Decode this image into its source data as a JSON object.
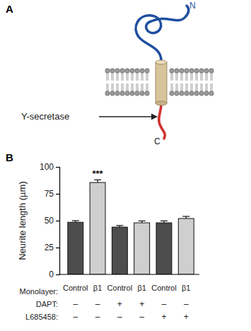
{
  "diagram": {
    "label": "A",
    "n_terminus": "N",
    "c_terminus": "C",
    "arrow_label": "Y-secretase"
  },
  "chart_data": {
    "type": "bar",
    "panel_label": "B",
    "y_label": "Neurite length (µm)",
    "category_row_label": "Monolayer:",
    "categories": [
      "Control",
      "β1",
      "Control",
      "β1",
      "Control",
      "β1"
    ],
    "values": [
      48.5,
      85.5,
      44,
      48,
      48,
      52
    ],
    "errors": [
      1.5,
      2.5,
      1.5,
      1.8,
      1.8,
      2
    ],
    "colors": [
      "#4d4d4d",
      "#cfcfcf",
      "#4d4d4d",
      "#cfcfcf",
      "#4d4d4d",
      "#cfcfcf"
    ],
    "condition_rows": [
      {
        "label": "DAPT:",
        "values": [
          "–",
          "–",
          "+",
          "+",
          "–",
          "–"
        ]
      },
      {
        "label": "L685458:",
        "values": [
          "–",
          "–",
          "–",
          "–",
          "+",
          "+"
        ]
      }
    ],
    "annotations": [
      {
        "index": 1,
        "text": "***"
      }
    ],
    "ylim": [
      0,
      100
    ],
    "yticks": [
      0,
      25,
      50,
      75,
      100
    ]
  }
}
